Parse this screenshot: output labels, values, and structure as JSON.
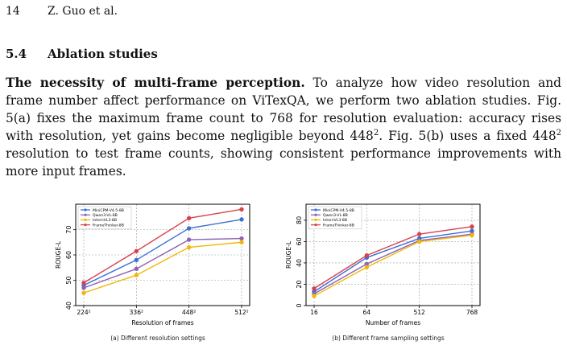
{
  "header": {
    "page_number": "14",
    "authors": "Z. Guo et al."
  },
  "section": {
    "number": "5.4",
    "title": "Ablation studies"
  },
  "paragraph": {
    "lead": "The necessity of multi-frame perception.",
    "t1": " To analyze how video resolution and frame number affect performance on ViTexQA, we perform two ablation studies. Fig. 5(a) fixes the maximum frame count to 768 for resolution evaluation: accuracy rises with resolution, yet gains become negligible beyond 448",
    "sup1": "2",
    "t2": ". Fig. 5(b) uses a fixed 448",
    "sup2": "2",
    "t3": " resolution to test frame counts, showing consistent performance improvements with more input frames."
  },
  "chart_data": [
    {
      "type": "line",
      "categories": [
        "224²",
        "336²",
        "448²",
        "512²"
      ],
      "xlabel": "Resolution of frames",
      "ylabel": "ROUGE-L",
      "ylim": [
        40,
        80
      ],
      "yticks": [
        40,
        50,
        60,
        70
      ],
      "grid": true,
      "legend": "top-left",
      "caption": "(a) Different resolution settings",
      "series": [
        {
          "name": "MiniCPM-V4.5-8B",
          "color": "#3a6fd8",
          "values": [
            48.0,
            58.0,
            70.5,
            74.0
          ]
        },
        {
          "name": "Qwen3-VL-8B",
          "color": "#8e63b5",
          "values": [
            47.0,
            54.5,
            66.0,
            66.5
          ]
        },
        {
          "name": "InternVL3-8B",
          "color": "#f2b705",
          "values": [
            45.0,
            52.0,
            63.0,
            65.0
          ]
        },
        {
          "name": "FrameThinker-8B",
          "color": "#d9424b",
          "values": [
            49.0,
            61.5,
            74.5,
            78.0
          ]
        }
      ]
    },
    {
      "type": "line",
      "categories": [
        "16",
        "64",
        "512",
        "768"
      ],
      "xlabel": "Number of frames",
      "ylabel": "ROUGE-L",
      "ylim": [
        0,
        95
      ],
      "yticks": [
        0,
        20,
        40,
        60,
        80
      ],
      "grid": true,
      "legend": "top-left",
      "caption": "(b) Different frame sampling settings",
      "series": [
        {
          "name": "MiniCPM-V4.5-8B",
          "color": "#3a6fd8",
          "values": [
            13,
            45,
            63,
            70
          ]
        },
        {
          "name": "Qwen3-VL-8B",
          "color": "#8e63b5",
          "values": [
            11,
            39,
            61,
            67
          ]
        },
        {
          "name": "InternVL3-8B",
          "color": "#f2b705",
          "values": [
            9,
            36,
            60,
            66
          ]
        },
        {
          "name": "FrameThinker-8B",
          "color": "#d9424b",
          "values": [
            16,
            47,
            67,
            74
          ]
        }
      ]
    }
  ]
}
